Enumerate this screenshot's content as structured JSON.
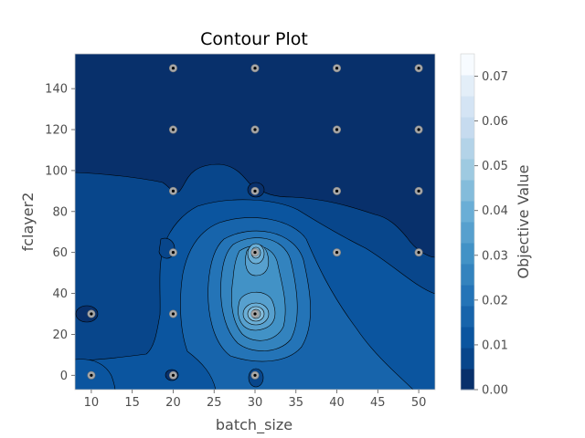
{
  "chart_data": {
    "type": "contour",
    "title": "Contour Plot",
    "xlabel": "batch_size",
    "ylabel": "fclayer2",
    "colorbar_label": "Objective Value",
    "xlim": [
      8,
      52
    ],
    "ylim": [
      -7,
      157
    ],
    "xticks": [
      10,
      15,
      20,
      25,
      30,
      35,
      40,
      45,
      50
    ],
    "yticks": [
      0,
      20,
      40,
      60,
      80,
      100,
      120,
      140
    ],
    "colorbar_range": [
      0.0,
      0.075
    ],
    "colorbar_ticks": [
      "0.00",
      "0.01",
      "0.02",
      "0.03",
      "0.04",
      "0.05",
      "0.06",
      "0.07"
    ],
    "colormap": [
      "#08306b",
      "#08468b",
      "#0b559f",
      "#1764ab",
      "#2474b7",
      "#3383be",
      "#4292c6",
      "#57a0ce",
      "#6aaed6",
      "#84bcdb",
      "#9ecae1",
      "#b3d3e8",
      "#c6dbef",
      "#d4e4f4",
      "#e3eef8",
      "#f7fbff"
    ],
    "trials": [
      {
        "x": 20,
        "y": 150
      },
      {
        "x": 30,
        "y": 150
      },
      {
        "x": 40,
        "y": 150
      },
      {
        "x": 50,
        "y": 150
      },
      {
        "x": 20,
        "y": 120
      },
      {
        "x": 30,
        "y": 120
      },
      {
        "x": 40,
        "y": 120
      },
      {
        "x": 50,
        "y": 120
      },
      {
        "x": 20,
        "y": 90
      },
      {
        "x": 30,
        "y": 90
      },
      {
        "x": 40,
        "y": 90
      },
      {
        "x": 50,
        "y": 90
      },
      {
        "x": 20,
        "y": 60
      },
      {
        "x": 30,
        "y": 60
      },
      {
        "x": 40,
        "y": 60
      },
      {
        "x": 50,
        "y": 60
      },
      {
        "x": 20,
        "y": 30
      },
      {
        "x": 30,
        "y": 30
      },
      {
        "x": 10,
        "y": 30
      },
      {
        "x": 10,
        "y": 0
      },
      {
        "x": 20,
        "y": 0
      },
      {
        "x": 30,
        "y": 0
      }
    ]
  }
}
